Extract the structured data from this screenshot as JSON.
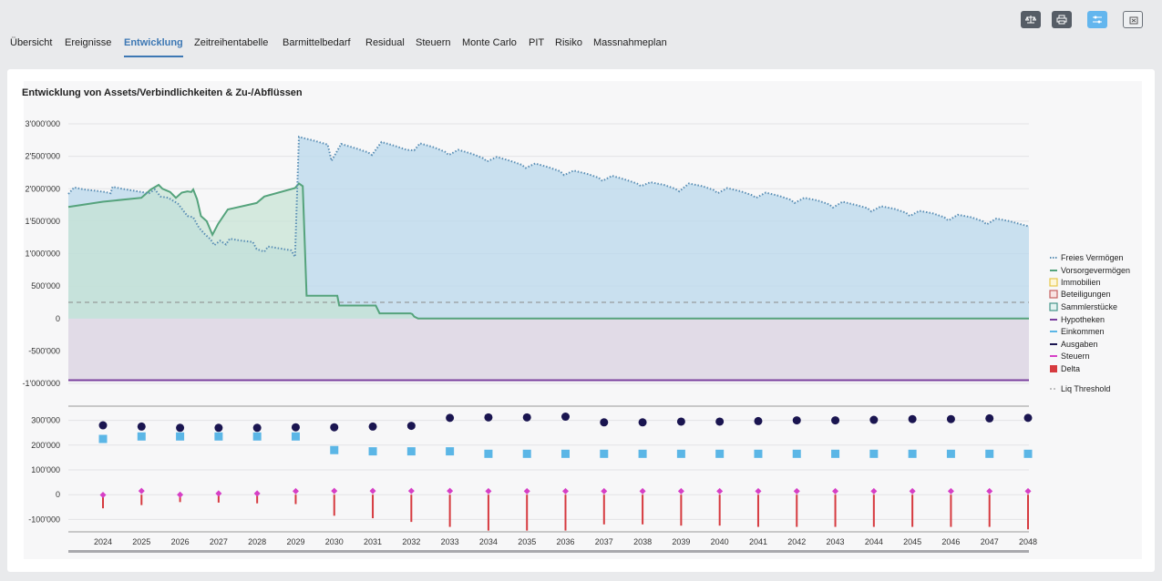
{
  "toolbar": {
    "buttons": [
      {
        "name": "scale-icon",
        "style": "dark"
      },
      {
        "name": "print-icon",
        "style": "dark"
      },
      {
        "name": "sliders-icon",
        "style": "blue"
      },
      {
        "name": "close-box-icon",
        "style": "light"
      }
    ]
  },
  "tabs": [
    {
      "label": "Übersicht",
      "active": false
    },
    {
      "label": "Ereignisse",
      "active": false
    },
    {
      "label": "Entwicklung",
      "active": true
    },
    {
      "label": "Zeitreihentabelle",
      "active": false
    },
    {
      "label": "Barmittelbedarf",
      "active": false
    },
    {
      "label": "Residual",
      "active": false
    },
    {
      "label": "Steuern",
      "active": false
    },
    {
      "label": "Monte Carlo",
      "active": false
    },
    {
      "label": "PIT",
      "active": false
    },
    {
      "label": "Risiko",
      "active": false
    },
    {
      "label": "Massnahmeplan",
      "active": false
    }
  ],
  "colors": {
    "frei": "#5b8fb5",
    "freiFill": "#bad8ec",
    "vorsorge": "#55a37c",
    "vorsorgeFill": "#c5e3d3",
    "hypothekFill": "#e1dbe7",
    "hypothek": "#7a3f9e",
    "einkommen": "#5bb6e6",
    "ausgaben": "#1a1550",
    "steuern": "#d63fc6",
    "delta": "#d63a3f",
    "threshold": "#8a8a8a"
  },
  "chart_data": {
    "type": "area+scatter",
    "title": "Entwicklung von Assets/Verbindlichkeiten & Zu-/Abflüssen",
    "upper_ylim": [
      -1000000,
      3000000
    ],
    "upper_ticks": [
      3000000,
      2500000,
      2000000,
      1500000,
      1000000,
      500000,
      0,
      -500000,
      -1000000
    ],
    "upper_tick_labels": [
      "3'000'000",
      "2'500'000",
      "2'000'000",
      "1'500'000",
      "1'000'000",
      "500'000",
      "0",
      "-500'000",
      "-1'000'000"
    ],
    "lower_ylim": [
      -150000,
      350000
    ],
    "lower_ticks": [
      300000,
      200000,
      100000,
      0,
      -100000
    ],
    "lower_tick_labels": [
      "300'000",
      "200'000",
      "100'000",
      "0",
      "-100'000"
    ],
    "x_range": [
      2023.1,
      2048.1
    ],
    "years": [
      2024,
      2025,
      2026,
      2027,
      2028,
      2029,
      2030,
      2031,
      2032,
      2033,
      2034,
      2035,
      2036,
      2037,
      2038,
      2039,
      2040,
      2041,
      2042,
      2043,
      2044,
      2045,
      2046,
      2047,
      2048
    ],
    "liq_threshold": 250000,
    "hypotheken": -950000,
    "series": [
      {
        "name": "Freies Vermögen",
        "kind": "area-dotted",
        "points": [
          [
            2023.1,
            1920000
          ],
          [
            2023.25,
            2020000
          ],
          [
            2023.5,
            1990000
          ],
          [
            2023.8,
            1970000
          ],
          [
            2024.05,
            1950000
          ],
          [
            2024.2,
            1930000
          ],
          [
            2024.25,
            2030000
          ],
          [
            2024.5,
            2000000
          ],
          [
            2024.8,
            1970000
          ],
          [
            2025.2,
            1930000
          ],
          [
            2025.35,
            1990000
          ],
          [
            2025.5,
            1880000
          ],
          [
            2025.7,
            1860000
          ],
          [
            2025.95,
            1770000
          ],
          [
            2026.2,
            1580000
          ],
          [
            2026.35,
            1560000
          ],
          [
            2026.5,
            1400000
          ],
          [
            2026.65,
            1300000
          ],
          [
            2026.8,
            1220000
          ],
          [
            2026.9,
            1130000
          ],
          [
            2027.05,
            1200000
          ],
          [
            2027.2,
            1140000
          ],
          [
            2027.3,
            1230000
          ],
          [
            2027.6,
            1200000
          ],
          [
            2027.9,
            1180000
          ],
          [
            2028.0,
            1070000
          ],
          [
            2028.2,
            1030000
          ],
          [
            2028.3,
            1110000
          ],
          [
            2028.6,
            1080000
          ],
          [
            2028.9,
            1050000
          ],
          [
            2029.0,
            950000
          ],
          [
            2029.1,
            2800000
          ],
          [
            2029.5,
            2740000
          ],
          [
            2029.85,
            2680000
          ],
          [
            2029.95,
            2430000
          ],
          [
            2030.2,
            2690000
          ],
          [
            2030.6,
            2620000
          ],
          [
            2030.9,
            2560000
          ],
          [
            2031.0,
            2520000
          ],
          [
            2031.25,
            2720000
          ],
          [
            2031.6,
            2660000
          ],
          [
            2031.9,
            2600000
          ],
          [
            2032.1,
            2590000
          ],
          [
            2032.25,
            2700000
          ],
          [
            2032.6,
            2640000
          ],
          [
            2032.9,
            2570000
          ],
          [
            2033.0,
            2520000
          ],
          [
            2033.25,
            2600000
          ],
          [
            2033.6,
            2540000
          ],
          [
            2033.9,
            2470000
          ],
          [
            2034.0,
            2420000
          ],
          [
            2034.25,
            2490000
          ],
          [
            2034.6,
            2430000
          ],
          [
            2034.9,
            2370000
          ],
          [
            2035.0,
            2320000
          ],
          [
            2035.25,
            2390000
          ],
          [
            2035.6,
            2330000
          ],
          [
            2035.9,
            2270000
          ],
          [
            2036.0,
            2210000
          ],
          [
            2036.25,
            2280000
          ],
          [
            2036.6,
            2230000
          ],
          [
            2036.9,
            2170000
          ],
          [
            2037.0,
            2120000
          ],
          [
            2037.25,
            2200000
          ],
          [
            2037.6,
            2140000
          ],
          [
            2037.9,
            2080000
          ],
          [
            2038.0,
            2040000
          ],
          [
            2038.25,
            2100000
          ],
          [
            2038.6,
            2060000
          ],
          [
            2038.9,
            2000000
          ],
          [
            2039.0,
            1960000
          ],
          [
            2039.25,
            2080000
          ],
          [
            2039.6,
            2040000
          ],
          [
            2039.9,
            1980000
          ],
          [
            2040.0,
            1930000
          ],
          [
            2040.25,
            2010000
          ],
          [
            2040.6,
            1960000
          ],
          [
            2040.9,
            1900000
          ],
          [
            2041.0,
            1860000
          ],
          [
            2041.25,
            1940000
          ],
          [
            2041.6,
            1890000
          ],
          [
            2041.9,
            1830000
          ],
          [
            2042.0,
            1780000
          ],
          [
            2042.25,
            1860000
          ],
          [
            2042.6,
            1820000
          ],
          [
            2042.9,
            1760000
          ],
          [
            2043.0,
            1710000
          ],
          [
            2043.25,
            1800000
          ],
          [
            2043.6,
            1750000
          ],
          [
            2043.9,
            1700000
          ],
          [
            2044.0,
            1650000
          ],
          [
            2044.25,
            1730000
          ],
          [
            2044.6,
            1690000
          ],
          [
            2044.9,
            1630000
          ],
          [
            2045.0,
            1580000
          ],
          [
            2045.25,
            1660000
          ],
          [
            2045.6,
            1620000
          ],
          [
            2045.9,
            1560000
          ],
          [
            2046.0,
            1510000
          ],
          [
            2046.25,
            1600000
          ],
          [
            2046.6,
            1560000
          ],
          [
            2046.9,
            1500000
          ],
          [
            2047.0,
            1450000
          ],
          [
            2047.25,
            1540000
          ],
          [
            2047.6,
            1500000
          ],
          [
            2047.9,
            1450000
          ],
          [
            2048.1,
            1420000
          ]
        ]
      },
      {
        "name": "Vorsorgevermögen",
        "kind": "area-line",
        "points": [
          [
            2023.1,
            1720000
          ],
          [
            2024.0,
            1800000
          ],
          [
            2025.0,
            1860000
          ],
          [
            2025.25,
            1990000
          ],
          [
            2025.45,
            2060000
          ],
          [
            2025.55,
            2000000
          ],
          [
            2025.75,
            1950000
          ],
          [
            2025.9,
            1860000
          ],
          [
            2026.05,
            1940000
          ],
          [
            2026.2,
            1960000
          ],
          [
            2026.3,
            1950000
          ],
          [
            2026.35,
            1990000
          ],
          [
            2026.45,
            1840000
          ],
          [
            2026.55,
            1580000
          ],
          [
            2026.7,
            1500000
          ],
          [
            2026.85,
            1290000
          ],
          [
            2027.0,
            1460000
          ],
          [
            2027.25,
            1680000
          ],
          [
            2028.0,
            1780000
          ],
          [
            2028.2,
            1880000
          ],
          [
            2029.0,
            2010000
          ],
          [
            2029.1,
            2080000
          ],
          [
            2029.2,
            2040000
          ],
          [
            2029.3,
            350000
          ],
          [
            2030.1,
            350000
          ],
          [
            2030.15,
            200000
          ],
          [
            2031.1,
            200000
          ],
          [
            2031.2,
            80000
          ],
          [
            2032.0,
            80000
          ],
          [
            2032.05,
            70000
          ],
          [
            2032.1,
            30000
          ],
          [
            2032.2,
            0
          ],
          [
            2048.1,
            0
          ]
        ]
      },
      {
        "name": "Immobilien",
        "kind": "legend-only",
        "values": []
      },
      {
        "name": "Beteiligungen",
        "kind": "legend-only",
        "values": []
      },
      {
        "name": "Sammlerstücke",
        "kind": "legend-only",
        "values": []
      },
      {
        "name": "Hypotheken",
        "kind": "area-line",
        "values": [
          -950000
        ]
      },
      {
        "name": "Einkommen",
        "kind": "scatter",
        "values": [
          225000,
          235000,
          235000,
          235000,
          235000,
          235000,
          180000,
          175000,
          175000,
          175000,
          165000,
          165000,
          165000,
          165000,
          165000,
          165000,
          165000,
          165000,
          165000,
          165000,
          165000,
          165000,
          165000,
          165000,
          165000
        ]
      },
      {
        "name": "Ausgaben",
        "kind": "scatter",
        "values": [
          280000,
          275000,
          270000,
          270000,
          270000,
          272000,
          272000,
          275000,
          278000,
          310000,
          312000,
          312000,
          315000,
          292000,
          292000,
          295000,
          295000,
          297000,
          300000,
          300000,
          302000,
          305000,
          305000,
          308000,
          310000
        ]
      },
      {
        "name": "Steuern",
        "kind": "scatter",
        "values": [
          -1000,
          15000,
          0,
          5000,
          5000,
          14000,
          15000,
          15000,
          15000,
          15000,
          14000,
          14000,
          14000,
          14000,
          14000,
          14000,
          14000,
          14000,
          14000,
          14000,
          14000,
          14000,
          14000,
          14000,
          14000
        ]
      },
      {
        "name": "Delta",
        "kind": "stem",
        "values": [
          -55000,
          -42000,
          -30000,
          -32000,
          -35000,
          -38000,
          -85000,
          -95000,
          -110000,
          -130000,
          -145000,
          -145000,
          -145000,
          -120000,
          -120000,
          -125000,
          -125000,
          -130000,
          -130000,
          -130000,
          -130000,
          -130000,
          -130000,
          -130000,
          -140000
        ]
      },
      {
        "name": "Liq Threshold",
        "kind": "dashed",
        "values": [
          250000
        ]
      }
    ]
  }
}
